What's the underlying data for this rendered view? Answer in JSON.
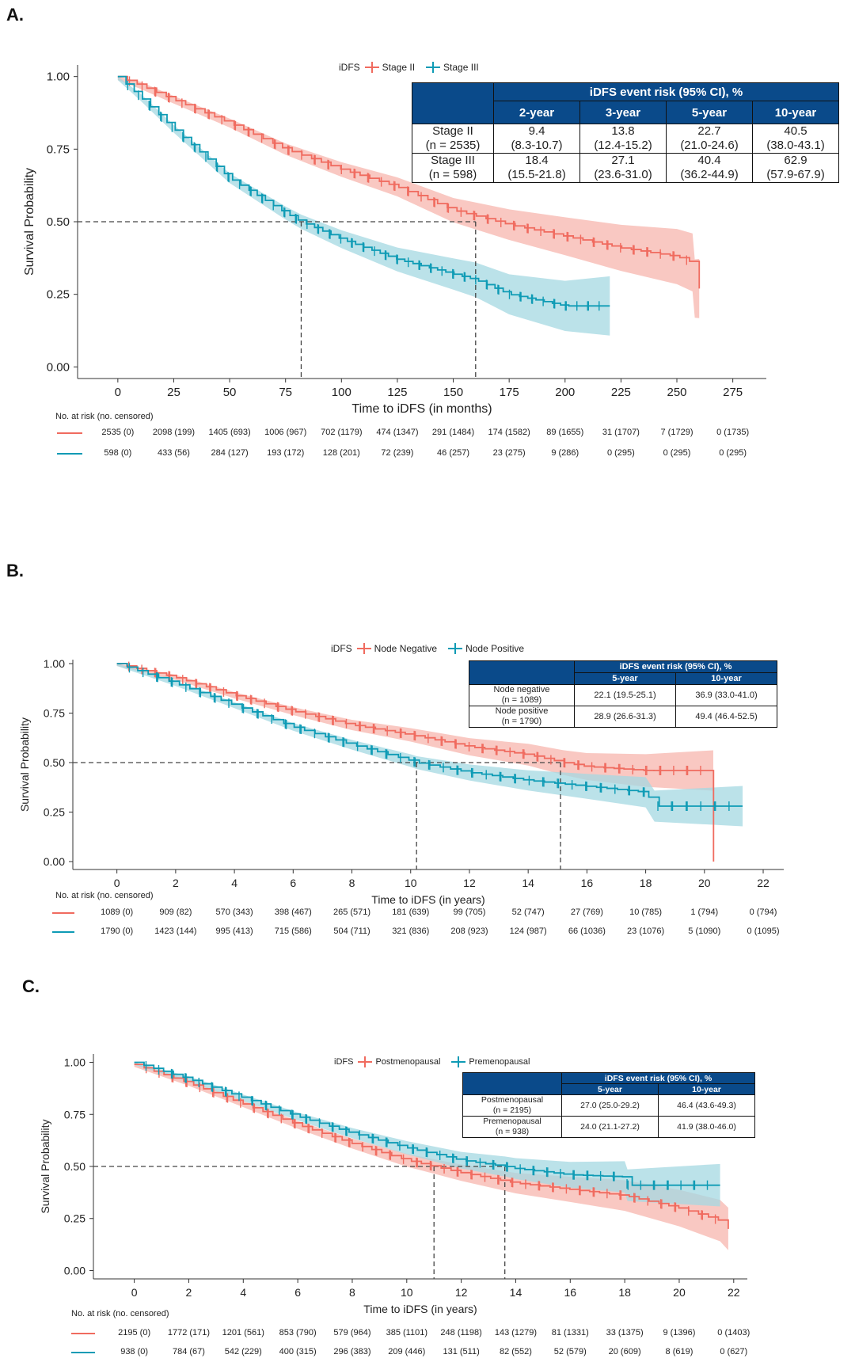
{
  "colors": {
    "red": "#f06b5f",
    "teal": "#0e9bb5",
    "red_band": "#f7b5ae",
    "teal_band": "#a4d8e2",
    "header_blue": "#0a4a8a"
  },
  "chart_data": [
    {
      "panel": "A.",
      "type": "line",
      "subtype": "kaplan-meier",
      "legend_title": "iDFS",
      "series": [
        {
          "name": "Stage II",
          "color": "red",
          "x": [
            0,
            10,
            25,
            50,
            75,
            100,
            125,
            150,
            175,
            200,
            225,
            250,
            257,
            258,
            260
          ],
          "y": [
            1.0,
            0.97,
            0.92,
            0.84,
            0.75,
            0.68,
            0.62,
            0.54,
            0.49,
            0.45,
            0.41,
            0.38,
            0.36,
            0.27,
            0.27
          ]
        },
        {
          "name": "Stage III",
          "color": "teal",
          "x": [
            0,
            10,
            25,
            50,
            75,
            82,
            100,
            125,
            150,
            160,
            175,
            200,
            220
          ],
          "y": [
            1.0,
            0.93,
            0.82,
            0.65,
            0.53,
            0.5,
            0.44,
            0.37,
            0.32,
            0.3,
            0.25,
            0.21,
            0.21
          ]
        }
      ],
      "median_x": [
        82,
        160
      ],
      "xlabel": "Time to iDFS (in months)",
      "ylabel": "Survival Probability",
      "xticks": [
        0,
        25,
        50,
        75,
        100,
        125,
        150,
        175,
        200,
        225,
        250,
        275
      ],
      "yticks": [
        0.0,
        0.25,
        0.5,
        0.75,
        1.0
      ],
      "ytick_labels": [
        "0.00",
        "0.25",
        "0.50",
        "0.75",
        "1.00"
      ],
      "xlim": [
        -18,
        290
      ],
      "ylim": [
        -0.04,
        1.04
      ],
      "table": {
        "header": "iDFS event risk (95% CI), %",
        "columns": [
          "2-year",
          "3-year",
          "5-year",
          "10-year"
        ],
        "rows": [
          {
            "label": "Stage II",
            "n": "(n = 2535)",
            "cells": [
              [
                "9.4",
                "(8.3-10.7)"
              ],
              [
                "13.8",
                "(12.4-15.2)"
              ],
              [
                "22.7",
                "(21.0-24.6)"
              ],
              [
                "40.5",
                "(38.0-43.1)"
              ]
            ]
          },
          {
            "label": "Stage III",
            "n": "(n = 598)",
            "cells": [
              [
                "18.4",
                "(15.5-21.8)"
              ],
              [
                "27.1",
                "(23.6-31.0)"
              ],
              [
                "40.4",
                "(36.2-44.9)"
              ],
              [
                "62.9",
                "(57.9-67.9)"
              ]
            ]
          }
        ]
      },
      "risk_title": "No. at risk (no. censored)",
      "risk_rows": [
        [
          "2535 (0)",
          "2098 (199)",
          "1405 (693)",
          "1006 (967)",
          "702 (1179)",
          "474 (1347)",
          "291 (1484)",
          "174 (1582)",
          "89 (1655)",
          "31 (1707)",
          "7 (1729)",
          "0 (1735)"
        ],
        [
          "598 (0)",
          "433 (56)",
          "284 (127)",
          "193 (172)",
          "128 (201)",
          "72 (239)",
          "46 (257)",
          "23 (275)",
          "9 (286)",
          "0 (295)",
          "0 (295)",
          "0 (295)"
        ]
      ]
    },
    {
      "panel": "B.",
      "type": "line",
      "subtype": "kaplan-meier",
      "legend_title": "iDFS",
      "series": [
        {
          "name": "Node Negative",
          "color": "red",
          "x": [
            0,
            2,
            4,
            6,
            8,
            10,
            12,
            14,
            15.2,
            16,
            18,
            20,
            20.3,
            20.31
          ],
          "y": [
            1.0,
            0.93,
            0.84,
            0.76,
            0.69,
            0.64,
            0.58,
            0.54,
            0.5,
            0.48,
            0.46,
            0.46,
            0.46,
            0.0
          ]
        },
        {
          "name": "Node Positive",
          "color": "teal",
          "x": [
            0,
            2,
            4,
            6,
            8,
            10,
            10.2,
            12,
            14,
            16,
            18,
            18.3,
            21.3
          ],
          "y": [
            1.0,
            0.9,
            0.79,
            0.68,
            0.59,
            0.51,
            0.5,
            0.45,
            0.41,
            0.38,
            0.35,
            0.28,
            0.28
          ]
        }
      ],
      "median_x": [
        10.2,
        15.1
      ],
      "xlabel": "Time to iDFS (in years)",
      "ylabel": "Survival Probability",
      "xticks": [
        0,
        2,
        4,
        6,
        8,
        10,
        12,
        14,
        16,
        18,
        20,
        22
      ],
      "yticks": [
        0.0,
        0.25,
        0.5,
        0.75,
        1.0
      ],
      "ytick_labels": [
        "0.00",
        "0.25",
        "0.50",
        "0.75",
        "1.00"
      ],
      "xlim": [
        -1.5,
        22.7
      ],
      "ylim": [
        -0.04,
        1.02
      ],
      "table": {
        "header": "iDFS event risk (95% CI), %",
        "columns": [
          "5-year",
          "10-year"
        ],
        "rows": [
          {
            "label": "Node negative",
            "n": "(n = 1089)",
            "cells": [
              [
                "22.1 (19.5-25.1)"
              ],
              [
                "36.9 (33.0-41.0)"
              ]
            ]
          },
          {
            "label": "Node positive",
            "n": "(n = 1790)",
            "cells": [
              [
                "28.9 (26.6-31.3)"
              ],
              [
                "49.4 (46.4-52.5)"
              ]
            ]
          }
        ]
      },
      "risk_title": "No. at risk (no. censored)",
      "risk_rows": [
        [
          "1089 (0)",
          "909 (82)",
          "570 (343)",
          "398 (467)",
          "265 (571)",
          "181 (639)",
          "99 (705)",
          "52 (747)",
          "27 (769)",
          "10 (785)",
          "1 (794)",
          "0 (794)"
        ],
        [
          "1790 (0)",
          "1423 (144)",
          "995 (413)",
          "715 (586)",
          "504 (711)",
          "321 (836)",
          "208 (923)",
          "124 (987)",
          "66 (1036)",
          "23 (1076)",
          "5 (1090)",
          "0 (1095)"
        ]
      ]
    },
    {
      "panel": "C.",
      "type": "line",
      "subtype": "kaplan-meier",
      "legend_title": "iDFS",
      "series": [
        {
          "name": "Postmenopausal",
          "color": "red",
          "x": [
            0,
            2,
            4,
            6,
            8,
            10,
            11,
            12,
            14,
            16,
            18,
            20,
            21.5,
            21.8
          ],
          "y": [
            0.99,
            0.9,
            0.8,
            0.7,
            0.61,
            0.53,
            0.5,
            0.47,
            0.42,
            0.39,
            0.36,
            0.3,
            0.24,
            0.2
          ]
        },
        {
          "name": "Premenopausal",
          "color": "teal",
          "x": [
            0,
            2,
            4,
            6,
            8,
            10,
            12,
            13.6,
            14,
            16,
            18,
            18.1,
            21.5
          ],
          "y": [
            1.0,
            0.92,
            0.83,
            0.74,
            0.66,
            0.59,
            0.53,
            0.5,
            0.49,
            0.46,
            0.45,
            0.41,
            0.41
          ]
        }
      ],
      "median_x": [
        11.0,
        13.6
      ],
      "xlabel": "Time to iDFS (in years)",
      "ylabel": "Survival Probability",
      "xticks": [
        0,
        2,
        4,
        6,
        8,
        10,
        12,
        14,
        16,
        18,
        20,
        22
      ],
      "yticks": [
        0.0,
        0.25,
        0.5,
        0.75,
        1.0
      ],
      "ytick_labels": [
        "0.00",
        "0.25",
        "0.50",
        "0.75",
        "1.00"
      ],
      "xlim": [
        -1.5,
        22.5
      ],
      "ylim": [
        -0.04,
        1.04
      ],
      "table": {
        "header": "iDFS event risk (95% CI), %",
        "columns": [
          "5-year",
          "10-year"
        ],
        "rows": [
          {
            "label": "Postmenopausal",
            "n": "(n = 2195)",
            "cells": [
              [
                "27.0 (25.0-29.2)"
              ],
              [
                "46.4 (43.6-49.3)"
              ]
            ]
          },
          {
            "label": "Premenopausal",
            "n": "(n = 938)",
            "cells": [
              [
                "24.0 (21.1-27.2)"
              ],
              [
                "41.9 (38.0-46.0)"
              ]
            ]
          }
        ]
      },
      "risk_title": "No. at risk (no. censored)",
      "risk_rows": [
        [
          "2195 (0)",
          "1772 (171)",
          "1201 (561)",
          "853 (790)",
          "579 (964)",
          "385 (1101)",
          "248 (1198)",
          "143 (1279)",
          "81 (1331)",
          "33 (1375)",
          "9 (1396)",
          "0 (1403)"
        ],
        [
          "938 (0)",
          "784 (67)",
          "542 (229)",
          "400 (315)",
          "296 (383)",
          "209 (446)",
          "131 (511)",
          "82 (552)",
          "52 (579)",
          "20 (609)",
          "8 (619)",
          "0 (627)"
        ]
      ]
    }
  ]
}
